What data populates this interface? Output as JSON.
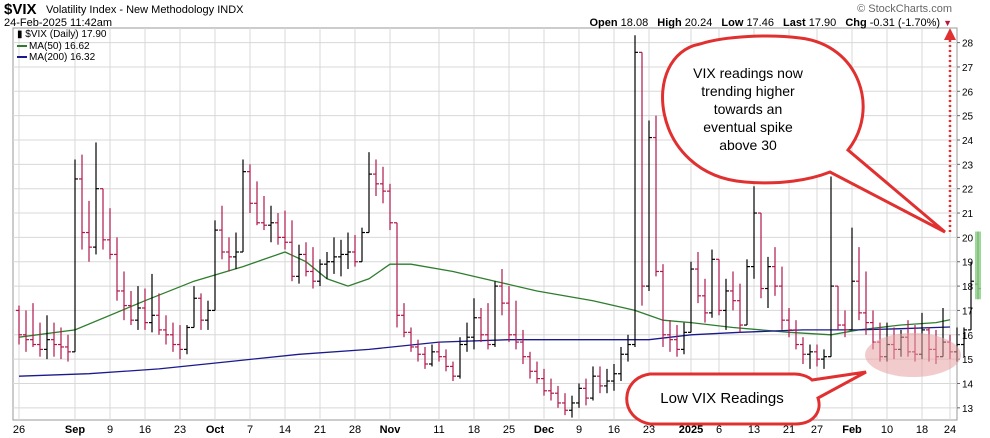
{
  "header": {
    "symbol": "$VIX",
    "description": "Volatility Index - New Methodology",
    "exchange": "INDX",
    "datetime": "24-Feb-2025 11:42am",
    "brand": "© StockCharts.com",
    "open_label": "Open",
    "open_value": "18.08",
    "high_label": "High",
    "high_value": "20.24",
    "low_label": "Low",
    "low_value": "17.46",
    "last_label": "Last",
    "last_value": "17.90",
    "chg_label": "Chg",
    "chg_value": "-0.31 (-1.70%)"
  },
  "legend": {
    "price": "$VIX (Daily) 17.90",
    "ma50": "MA(50) 16.62",
    "ma200": "MA(200) 16.32"
  },
  "colors": {
    "up_bar": "#000000",
    "down_bar": "#b0184e",
    "ma50": "#2e7d2e",
    "ma200": "#1a1a8c",
    "callout_fill": "#ffffff",
    "callout_stroke": "#e03030",
    "highlight": "#e8a3a3",
    "arrow": "#e03030",
    "last_bar_fill": "#80d080"
  },
  "annotations": {
    "top_callout": [
      "VIX readings now",
      "trending higher",
      "towards an",
      "eventual spike",
      "above 30"
    ],
    "bottom_callout": "Low VIX Readings"
  },
  "chart_data": {
    "type": "ohlc",
    "title": "$VIX Volatility Index - New Methodology",
    "ylim": [
      12.5,
      28.6
    ],
    "y_ticks": [
      13,
      14,
      15,
      16,
      17,
      18,
      19,
      20,
      21,
      22,
      23,
      24,
      25,
      26,
      27,
      28
    ],
    "x_tick_labels": [
      "26",
      "Sep",
      "9",
      "16",
      "23",
      "Oct",
      "7",
      "14",
      "21",
      "28",
      "Nov",
      "11",
      "18",
      "25",
      "Dec",
      "9",
      "16",
      "23",
      "2025",
      "6",
      "13",
      "21",
      "27",
      "Feb",
      "10",
      "18",
      "24"
    ],
    "x_tick_index": [
      0,
      8,
      13,
      18,
      23,
      28,
      33,
      38,
      43,
      48,
      53,
      60,
      65,
      70,
      75,
      80,
      85,
      90,
      96,
      100,
      105,
      110,
      114,
      119,
      124,
      129,
      133
    ],
    "bold_tick_labels": [
      "Sep",
      "Oct",
      "Nov",
      "Dec",
      "2025",
      "Feb"
    ],
    "bars": [
      [
        17.0,
        17.2,
        15.6,
        16.0
      ],
      [
        16.0,
        17.0,
        15.3,
        15.8
      ],
      [
        15.8,
        17.3,
        15.5,
        15.6
      ],
      [
        15.6,
        16.5,
        15.1,
        15.4
      ],
      [
        15.4,
        16.8,
        15.0,
        15.8
      ],
      [
        15.8,
        16.5,
        15.1,
        15.6
      ],
      [
        15.6,
        16.3,
        15.0,
        15.5
      ],
      [
        15.5,
        16.0,
        14.9,
        15.3
      ],
      [
        15.3,
        23.2,
        15.5,
        22.4
      ],
      [
        22.4,
        23.4,
        19.5,
        20.2
      ],
      [
        20.2,
        21.5,
        19.0,
        19.6
      ],
      [
        19.6,
        23.9,
        19.3,
        22.0
      ],
      [
        22.0,
        22.0,
        19.5,
        19.9
      ],
      [
        19.9,
        21.2,
        19.1,
        19.3
      ],
      [
        19.3,
        20.0,
        17.4,
        17.8
      ],
      [
        17.8,
        18.6,
        16.6,
        17.2
      ],
      [
        17.2,
        17.8,
        16.4,
        16.6
      ],
      [
        16.6,
        18.0,
        16.2,
        17.1
      ],
      [
        17.1,
        17.9,
        16.2,
        16.5
      ],
      [
        16.5,
        18.5,
        16.1,
        16.8
      ],
      [
        16.8,
        17.7,
        16.0,
        16.2
      ],
      [
        16.2,
        16.8,
        15.6,
        16.0
      ],
      [
        16.0,
        16.5,
        15.3,
        15.6
      ],
      [
        15.6,
        16.4,
        15.0,
        15.4
      ],
      [
        15.4,
        16.4,
        15.2,
        16.3
      ],
      [
        16.3,
        18.0,
        16.3,
        17.5
      ],
      [
        17.5,
        17.7,
        16.2,
        16.6
      ],
      [
        16.6,
        17.4,
        16.2,
        17.0
      ],
      [
        17.0,
        20.7,
        17.2,
        20.3
      ],
      [
        20.3,
        21.3,
        19.1,
        19.4
      ],
      [
        19.4,
        20.0,
        18.6,
        19.2
      ],
      [
        19.2,
        20.2,
        18.7,
        19.4
      ],
      [
        19.4,
        23.2,
        20.2,
        22.7
      ],
      [
        22.7,
        23.0,
        21.0,
        21.4
      ],
      [
        21.4,
        22.3,
        20.5,
        20.6
      ],
      [
        20.6,
        21.7,
        20.3,
        20.5
      ],
      [
        20.5,
        21.3,
        19.8,
        20.6
      ],
      [
        20.6,
        21.0,
        19.7,
        20.0
      ],
      [
        20.0,
        21.1,
        19.5,
        19.8
      ],
      [
        19.8,
        20.7,
        18.2,
        18.4
      ],
      [
        18.4,
        19.7,
        18.1,
        19.3
      ],
      [
        19.3,
        19.8,
        18.4,
        18.6
      ],
      [
        18.6,
        19.6,
        17.9,
        18.2
      ],
      [
        18.2,
        19.1,
        18.0,
        18.9
      ],
      [
        18.9,
        19.4,
        18.3,
        19.0
      ],
      [
        19.0,
        20.0,
        18.5,
        19.2
      ],
      [
        19.2,
        19.9,
        18.4,
        19.3
      ],
      [
        19.3,
        20.2,
        18.7,
        19.4
      ],
      [
        19.4,
        20.1,
        18.8,
        19.0
      ],
      [
        19.0,
        20.4,
        19.0,
        20.2
      ],
      [
        20.2,
        23.5,
        20.6,
        22.6
      ],
      [
        22.6,
        23.2,
        21.7,
        22.2
      ],
      [
        22.2,
        22.9,
        21.4,
        21.9
      ],
      [
        21.9,
        22.2,
        20.3,
        20.6
      ],
      [
        20.6,
        20.6,
        16.3,
        16.8
      ],
      [
        16.8,
        17.3,
        15.9,
        16.1
      ],
      [
        16.1,
        16.3,
        15.3,
        15.5
      ],
      [
        15.5,
        15.8,
        14.9,
        15.2
      ],
      [
        15.2,
        15.5,
        14.6,
        14.8
      ],
      [
        14.8,
        15.6,
        14.7,
        15.3
      ],
      [
        15.3,
        15.7,
        14.9,
        15.1
      ],
      [
        15.1,
        15.4,
        14.5,
        14.7
      ],
      [
        14.7,
        14.9,
        14.1,
        14.3
      ],
      [
        14.3,
        15.9,
        14.2,
        15.6
      ],
      [
        15.6,
        16.5,
        15.3,
        15.9
      ],
      [
        15.9,
        17.5,
        15.4,
        16.7
      ],
      [
        16.7,
        17.1,
        15.7,
        16.0
      ],
      [
        16.0,
        17.3,
        15.4,
        15.6
      ],
      [
        15.6,
        18.2,
        15.5,
        18.0
      ],
      [
        18.0,
        18.7,
        16.8,
        17.3
      ],
      [
        17.3,
        18.0,
        15.7,
        16.0
      ],
      [
        16.0,
        17.4,
        15.4,
        15.7
      ],
      [
        15.7,
        16.2,
        14.8,
        15.1
      ],
      [
        15.1,
        15.3,
        14.2,
        14.5
      ],
      [
        14.5,
        14.9,
        14.0,
        14.2
      ],
      [
        14.2,
        14.6,
        13.5,
        13.7
      ],
      [
        13.7,
        14.2,
        13.3,
        13.6
      ],
      [
        13.6,
        13.9,
        13.0,
        13.2
      ],
      [
        13.2,
        13.6,
        12.7,
        12.9
      ],
      [
        12.9,
        13.5,
        12.6,
        13.2
      ],
      [
        13.2,
        14.0,
        13.0,
        13.8
      ],
      [
        13.8,
        14.2,
        13.1,
        13.4
      ],
      [
        13.4,
        14.7,
        13.3,
        14.3
      ],
      [
        14.3,
        14.7,
        13.6,
        13.9
      ],
      [
        13.9,
        14.6,
        13.6,
        14.1
      ],
      [
        14.1,
        14.8,
        13.7,
        14.4
      ],
      [
        14.4,
        15.5,
        14.1,
        15.2
      ],
      [
        15.2,
        16.0,
        14.9,
        15.6
      ],
      [
        15.6,
        28.3,
        15.5,
        27.6
      ],
      [
        27.6,
        24.6,
        17.2,
        18.0
      ],
      [
        18.0,
        24.8,
        17.8,
        24.1
      ],
      [
        24.1,
        25.0,
        18.4,
        18.6
      ],
      [
        18.6,
        18.9,
        15.5,
        16.0
      ],
      [
        16.0,
        16.6,
        15.3,
        15.8
      ],
      [
        15.8,
        16.4,
        15.1,
        15.4
      ],
      [
        15.4,
        16.5,
        15.2,
        16.1
      ],
      [
        16.1,
        19.0,
        16.7,
        18.7
      ],
      [
        18.7,
        19.4,
        17.3,
        17.6
      ],
      [
        17.6,
        18.3,
        16.5,
        16.9
      ],
      [
        16.9,
        19.5,
        16.7,
        19.1
      ],
      [
        19.1,
        18.5,
        16.8,
        17.0
      ],
      [
        17.0,
        18.3,
        16.2,
        17.8
      ],
      [
        17.8,
        18.6,
        17.0,
        17.4
      ],
      [
        17.4,
        18.1,
        16.1,
        16.4
      ],
      [
        16.4,
        19.1,
        16.6,
        18.8
      ],
      [
        18.8,
        22.1,
        18.3,
        21.0
      ],
      [
        21.0,
        21.0,
        17.5,
        17.9
      ],
      [
        17.9,
        19.2,
        17.1,
        18.8
      ],
      [
        18.8,
        19.6,
        17.6,
        18.0
      ],
      [
        18.0,
        18.8,
        16.2,
        16.6
      ],
      [
        16.6,
        17.1,
        15.9,
        16.2
      ],
      [
        16.2,
        16.6,
        15.4,
        15.6
      ],
      [
        15.6,
        15.9,
        14.8,
        15.2
      ],
      [
        15.2,
        15.6,
        14.6,
        15.3
      ],
      [
        15.3,
        15.6,
        14.7,
        15.0
      ],
      [
        15.0,
        15.4,
        14.6,
        15.1
      ],
      [
        15.1,
        22.5,
        16.9,
        18.0
      ],
      [
        18.0,
        17.6,
        16.2,
        16.4
      ],
      [
        16.4,
        17.0,
        15.9,
        16.2
      ],
      [
        16.2,
        20.4,
        16.3,
        18.2
      ],
      [
        18.2,
        19.6,
        16.6,
        16.9
      ],
      [
        16.9,
        18.6,
        16.0,
        16.5
      ],
      [
        16.5,
        17.0,
        15.4,
        15.7
      ],
      [
        15.7,
        16.5,
        14.9,
        15.1
      ],
      [
        15.1,
        16.5,
        14.9,
        15.6
      ],
      [
        15.6,
        16.3,
        15.0,
        15.4
      ],
      [
        15.4,
        16.2,
        15.1,
        15.9
      ],
      [
        15.9,
        16.6,
        15.1,
        15.3
      ],
      [
        15.3,
        16.4,
        14.9,
        15.2
      ],
      [
        15.2,
        16.9,
        15.0,
        16.2
      ],
      [
        16.2,
        16.3,
        14.9,
        15.4
      ],
      [
        15.4,
        16.2,
        14.8,
        15.1
      ],
      [
        15.1,
        17.1,
        15.2,
        15.7
      ],
      [
        15.7,
        16.0,
        15.0,
        15.3
      ],
      [
        15.3,
        16.3,
        14.9,
        15.6
      ],
      [
        15.6,
        16.3,
        15.1,
        16.2
      ],
      [
        16.2,
        19.0,
        16.5,
        18.2
      ],
      [
        18.08,
        20.24,
        17.46,
        17.9
      ]
    ],
    "series": [
      {
        "name": "MA(50)",
        "color": "#2e7d2e",
        "points": [
          [
            0,
            15.9
          ],
          [
            8,
            16.2
          ],
          [
            18,
            17.4
          ],
          [
            25,
            18.2
          ],
          [
            32,
            18.8
          ],
          [
            35,
            19.1
          ],
          [
            38,
            19.4
          ],
          [
            41,
            19.0
          ],
          [
            44,
            18.3
          ],
          [
            47,
            18.0
          ],
          [
            50,
            18.3
          ],
          [
            53,
            18.9
          ],
          [
            56,
            18.9
          ],
          [
            62,
            18.6
          ],
          [
            68,
            18.2
          ],
          [
            74,
            17.8
          ],
          [
            82,
            17.4
          ],
          [
            88,
            17.0
          ],
          [
            92,
            16.6
          ],
          [
            96,
            16.5
          ],
          [
            102,
            16.3
          ],
          [
            110,
            16.1
          ],
          [
            116,
            16.0
          ],
          [
            120,
            16.2
          ],
          [
            126,
            16.4
          ],
          [
            131,
            16.5
          ],
          [
            133,
            16.62
          ]
        ]
      },
      {
        "name": "MA(200)",
        "color": "#1a1a8c",
        "points": [
          [
            0,
            14.3
          ],
          [
            10,
            14.4
          ],
          [
            20,
            14.6
          ],
          [
            30,
            14.9
          ],
          [
            40,
            15.2
          ],
          [
            50,
            15.4
          ],
          [
            60,
            15.7
          ],
          [
            70,
            15.8
          ],
          [
            80,
            15.8
          ],
          [
            90,
            15.8
          ],
          [
            96,
            16.0
          ],
          [
            103,
            16.1
          ],
          [
            112,
            16.2
          ],
          [
            120,
            16.2
          ],
          [
            126,
            16.25
          ],
          [
            133,
            16.32
          ]
        ]
      }
    ]
  }
}
